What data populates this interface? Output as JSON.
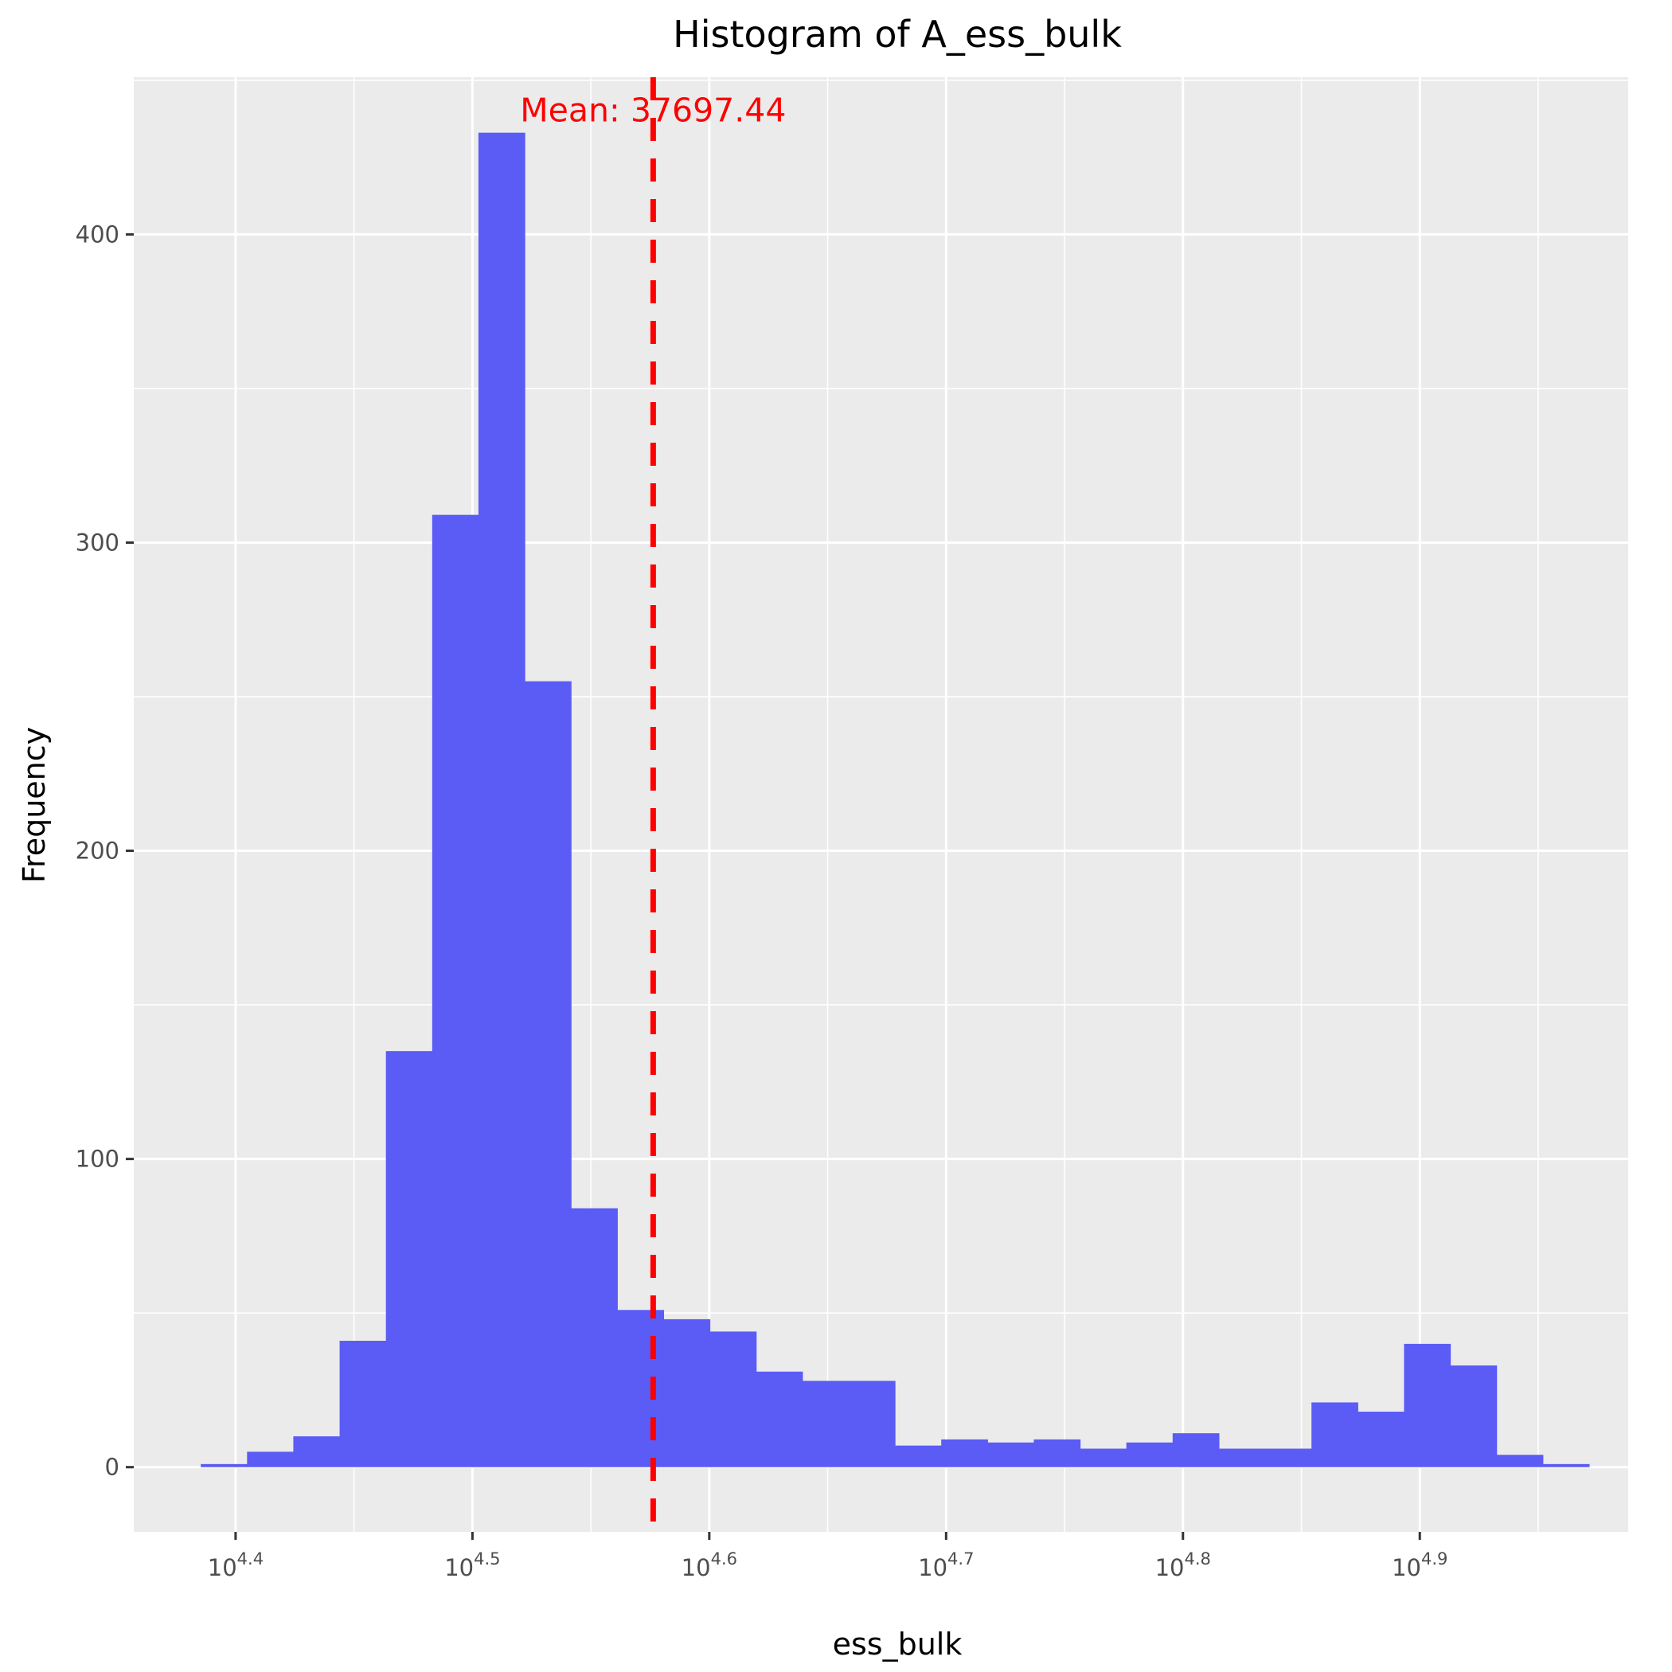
{
  "chart_data": {
    "type": "bar",
    "title": "Histogram of A_ess_bulk",
    "xlabel": "ess_bulk",
    "ylabel": "Frequency",
    "x_scale": "log10",
    "x_tick_base": "10",
    "x_ticks": [
      {
        "exp": 4.4,
        "label": "4.4"
      },
      {
        "exp": 4.5,
        "label": "4.5"
      },
      {
        "exp": 4.6,
        "label": "4.6"
      },
      {
        "exp": 4.7,
        "label": "4.7"
      },
      {
        "exp": 4.8,
        "label": "4.8"
      },
      {
        "exp": 4.9,
        "label": "4.9"
      }
    ],
    "y_ticks": [
      0,
      100,
      200,
      300,
      400
    ],
    "ylim": [
      -21,
      451
    ],
    "xlim_log10": [
      4.357,
      4.988
    ],
    "grid": true,
    "bar_color": "#5b5bf6",
    "bins_log10": {
      "start": 4.3853,
      "width": 0.01954,
      "counts": [
        1,
        5,
        10,
        41,
        135,
        309,
        433,
        255,
        84,
        51,
        48,
        44,
        31,
        28,
        28,
        7,
        9,
        8,
        9,
        6,
        8,
        11,
        6,
        6,
        21,
        18,
        40,
        33,
        4,
        1
      ]
    },
    "mean": {
      "value": 37697.44,
      "label": "Mean: 37697.44",
      "color": "#ff0000",
      "style": "dashed"
    }
  }
}
